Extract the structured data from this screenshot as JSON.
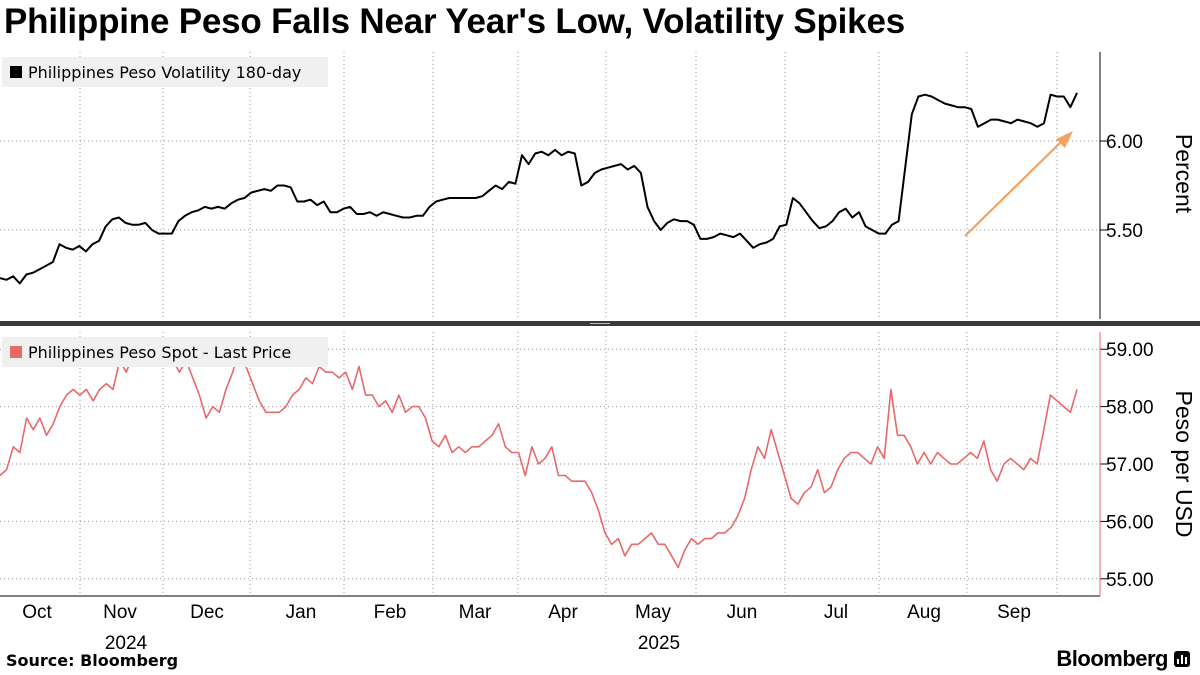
{
  "title": "Philippine Peso Falls Near Year's Low, Volatility Spikes",
  "footer": {
    "source": "Source: Bloomberg",
    "brand": "Bloomberg"
  },
  "colors": {
    "vol_line": "#000000",
    "spot_line": "#e8696b",
    "arrow": "#f4a261",
    "grid": "#999999",
    "axis": "#555555",
    "legend_bg": "#f0f0f0"
  },
  "chart_data": [
    {
      "type": "line",
      "panel": "top",
      "series": [
        {
          "name": "Philippines Peso Volatility 180-day",
          "color": "#000000",
          "values": [
            5.23,
            5.22,
            5.24,
            5.2,
            5.25,
            5.26,
            5.28,
            5.3,
            5.32,
            5.42,
            5.4,
            5.39,
            5.41,
            5.38,
            5.42,
            5.44,
            5.52,
            5.56,
            5.57,
            5.54,
            5.53,
            5.53,
            5.54,
            5.5,
            5.48,
            5.48,
            5.48,
            5.55,
            5.58,
            5.6,
            5.61,
            5.63,
            5.62,
            5.63,
            5.62,
            5.65,
            5.67,
            5.68,
            5.71,
            5.72,
            5.73,
            5.72,
            5.75,
            5.75,
            5.74,
            5.66,
            5.66,
            5.67,
            5.64,
            5.66,
            5.6,
            5.6,
            5.62,
            5.63,
            5.59,
            5.59,
            5.6,
            5.58,
            5.6,
            5.59,
            5.58,
            5.57,
            5.57,
            5.58,
            5.58,
            5.63,
            5.66,
            5.67,
            5.68,
            5.68,
            5.68,
            5.68,
            5.68,
            5.69,
            5.72,
            5.75,
            5.73,
            5.77,
            5.76,
            5.92,
            5.87,
            5.93,
            5.94,
            5.92,
            5.95,
            5.92,
            5.94,
            5.93,
            5.75,
            5.77,
            5.82,
            5.84,
            5.85,
            5.86,
            5.87,
            5.84,
            5.86,
            5.82,
            5.63,
            5.55,
            5.5,
            5.54,
            5.56,
            5.55,
            5.55,
            5.53,
            5.45,
            5.45,
            5.46,
            5.48,
            5.47,
            5.46,
            5.48,
            5.44,
            5.4,
            5.42,
            5.43,
            5.45,
            5.52,
            5.53,
            5.68,
            5.65,
            5.6,
            5.55,
            5.51,
            5.52,
            5.55,
            5.6,
            5.62,
            5.57,
            5.6,
            5.52,
            5.5,
            5.48,
            5.48,
            5.53,
            5.55,
            5.85,
            6.15,
            6.25,
            6.26,
            6.25,
            6.23,
            6.21,
            6.2,
            6.19,
            6.19,
            6.18,
            6.08,
            6.1,
            6.12,
            6.12,
            6.11,
            6.1,
            6.12,
            6.11,
            6.1,
            6.08,
            6.1,
            6.26,
            6.25,
            6.25,
            6.19,
            6.27
          ]
        }
      ],
      "y_axis": {
        "title": "Percent",
        "ticks": [
          {
            "value": 5.5,
            "label": "5.50"
          },
          {
            "value": 6.0,
            "label": "6.00"
          }
        ],
        "range": [
          5.0,
          6.5
        ]
      },
      "annotation": "trend arrow pointing up"
    },
    {
      "type": "line",
      "panel": "bottom",
      "series": [
        {
          "name": "Philippines Peso Spot - Last Price",
          "color": "#e8696b",
          "values": [
            56.8,
            56.9,
            57.3,
            57.2,
            57.8,
            57.6,
            57.8,
            57.5,
            57.7,
            58.0,
            58.2,
            58.3,
            58.2,
            58.3,
            58.1,
            58.3,
            58.4,
            58.3,
            58.8,
            58.6,
            58.9,
            58.8,
            58.8,
            58.9,
            58.9,
            59.0,
            58.8,
            58.6,
            58.8,
            58.5,
            58.2,
            57.8,
            58.0,
            57.9,
            58.3,
            58.6,
            59.0,
            58.7,
            58.4,
            58.1,
            57.9,
            57.9,
            57.9,
            58.0,
            58.2,
            58.3,
            58.5,
            58.4,
            58.7,
            58.6,
            58.6,
            58.5,
            58.6,
            58.3,
            58.7,
            58.2,
            58.2,
            58.0,
            58.1,
            57.9,
            58.2,
            57.9,
            58.0,
            58.0,
            57.8,
            57.4,
            57.3,
            57.5,
            57.2,
            57.3,
            57.2,
            57.3,
            57.3,
            57.4,
            57.5,
            57.7,
            57.3,
            57.2,
            57.2,
            56.8,
            57.3,
            57.0,
            57.1,
            57.3,
            56.8,
            56.8,
            56.7,
            56.7,
            56.7,
            56.5,
            56.2,
            55.8,
            55.6,
            55.7,
            55.4,
            55.6,
            55.6,
            55.7,
            55.8,
            55.6,
            55.6,
            55.4,
            55.2,
            55.5,
            55.7,
            55.6,
            55.7,
            55.7,
            55.8,
            55.8,
            55.9,
            56.1,
            56.4,
            56.9,
            57.3,
            57.1,
            57.6,
            57.2,
            56.8,
            56.4,
            56.3,
            56.5,
            56.6,
            56.9,
            56.5,
            56.6,
            56.9,
            57.1,
            57.2,
            57.2,
            57.1,
            57.0,
            57.3,
            57.1,
            58.3,
            57.5,
            57.5,
            57.3,
            57.0,
            57.2,
            57.0,
            57.2,
            57.1,
            57.0,
            57.0,
            57.1,
            57.2,
            57.1,
            57.4,
            56.9,
            56.7,
            57.0,
            57.1,
            57.0,
            56.9,
            57.1,
            57.0,
            57.6,
            58.2,
            58.1,
            58.0,
            57.9,
            58.3
          ]
        }
      ],
      "y_axis": {
        "title": "Peso per USD",
        "ticks": [
          {
            "value": 55,
            "label": "55.00"
          },
          {
            "value": 56,
            "label": "56.00"
          },
          {
            "value": 57,
            "label": "57.00"
          },
          {
            "value": 58,
            "label": "58.00"
          },
          {
            "value": 59,
            "label": "59.00"
          }
        ],
        "range": [
          54.7,
          59.3
        ]
      }
    }
  ],
  "x_axis": {
    "month_labels": [
      "Oct",
      "Nov",
      "Dec",
      "Jan",
      "Feb",
      "Mar",
      "Apr",
      "May",
      "Jun",
      "Jul",
      "Aug",
      "Sep"
    ],
    "year_labels": [
      {
        "label": "2024",
        "under_month_index": 1
      },
      {
        "label": "2025",
        "under_month_index": 7
      }
    ]
  }
}
